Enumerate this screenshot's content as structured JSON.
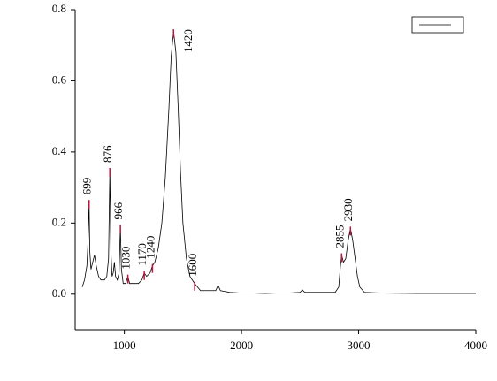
{
  "chart_data": {
    "type": "line",
    "x": [
      640,
      660,
      680,
      690,
      699,
      705,
      715,
      730,
      745,
      760,
      780,
      800,
      830,
      850,
      865,
      876,
      885,
      895,
      905,
      915,
      925,
      940,
      955,
      966,
      975,
      990,
      1010,
      1030,
      1045,
      1080,
      1120,
      1150,
      1170,
      1190,
      1220,
      1240,
      1260,
      1290,
      1320,
      1350,
      1380,
      1400,
      1420,
      1440,
      1460,
      1480,
      1500,
      1530,
      1560,
      1600,
      1650,
      1700,
      1780,
      1800,
      1820,
      1900,
      2000,
      2100,
      2200,
      2300,
      2400,
      2500,
      2520,
      2540,
      2700,
      2800,
      2830,
      2845,
      2855,
      2870,
      2890,
      2910,
      2930,
      2950,
      2970,
      2990,
      3010,
      3050,
      3200,
      3500,
      4000
    ],
    "series": [
      {
        "color": "#000000",
        "values": [
          0.02,
          0.04,
          0.08,
          0.15,
          0.26,
          0.12,
          0.07,
          0.09,
          0.11,
          0.08,
          0.05,
          0.04,
          0.04,
          0.05,
          0.1,
          0.35,
          0.12,
          0.05,
          0.06,
          0.09,
          0.05,
          0.04,
          0.06,
          0.19,
          0.07,
          0.03,
          0.03,
          0.05,
          0.03,
          0.03,
          0.03,
          0.04,
          0.06,
          0.05,
          0.06,
          0.08,
          0.09,
          0.13,
          0.2,
          0.33,
          0.52,
          0.67,
          0.74,
          0.68,
          0.52,
          0.34,
          0.2,
          0.1,
          0.05,
          0.03,
          0.01,
          0.01,
          0.01,
          0.025,
          0.01,
          0.005,
          0.003,
          0.003,
          0.002,
          0.003,
          0.003,
          0.005,
          0.012,
          0.005,
          0.005,
          0.005,
          0.02,
          0.08,
          0.11,
          0.09,
          0.1,
          0.15,
          0.185,
          0.15,
          0.1,
          0.05,
          0.02,
          0.005,
          0.003,
          0.002,
          0.002
        ]
      }
    ],
    "annotations": [
      {
        "label": "699",
        "x": 699,
        "y": 0.26
      },
      {
        "label": "876",
        "x": 876,
        "y": 0.35
      },
      {
        "label": "966",
        "x": 966,
        "y": 0.19
      },
      {
        "label": "1030",
        "x": 1030,
        "y": 0.05
      },
      {
        "label": "1170",
        "x": 1170,
        "y": 0.06
      },
      {
        "label": "1240",
        "x": 1240,
        "y": 0.08
      },
      {
        "label": "1420",
        "x": 1420,
        "y": 0.74
      },
      {
        "label": "1600",
        "x": 1600,
        "y": 0.03
      },
      {
        "label": "2855",
        "x": 2855,
        "y": 0.11
      },
      {
        "label": "2930",
        "x": 2930,
        "y": 0.185
      }
    ],
    "annotation_color": "#c0143c",
    "xlim": [
      580,
      4000
    ],
    "ylim": [
      -0.1,
      0.8
    ],
    "xticks": [
      1000,
      2000,
      3000,
      4000
    ],
    "yticks": [
      {
        "value": 0,
        "label": "0.0"
      },
      0.2,
      0.4,
      0.6,
      0.8
    ]
  }
}
